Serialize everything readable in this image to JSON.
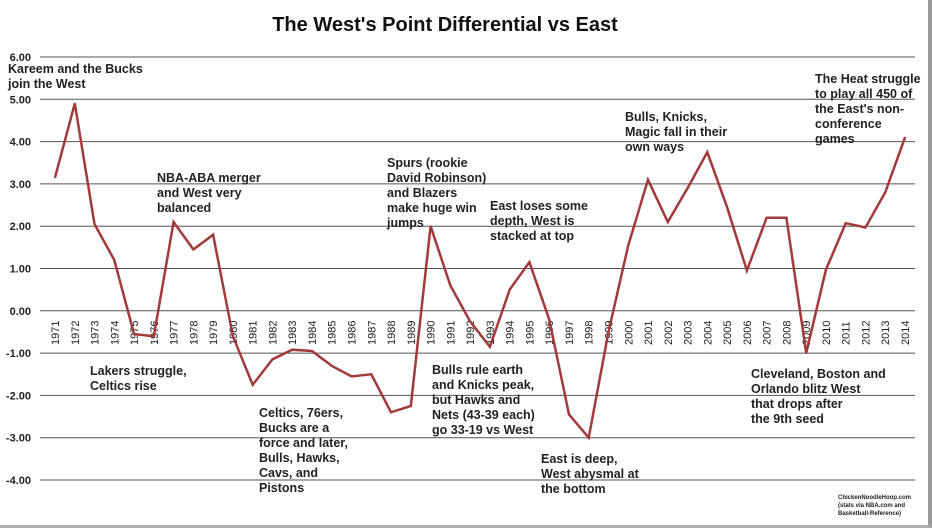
{
  "chart_data": {
    "type": "line",
    "title": "The West's Point Differential vs East",
    "xlabel": "",
    "ylabel": "",
    "ylim": [
      -4,
      6
    ],
    "y_ticks": [
      "6.00",
      "5.00",
      "4.00",
      "3.00",
      "2.00",
      "1.00",
      "0.00",
      "-1.00",
      "-2.00",
      "-3.00",
      "-4.00"
    ],
    "grid": true,
    "line_color": "#a23a3a",
    "x": [
      "1971",
      "1972",
      "1973",
      "1974",
      "1975",
      "1976",
      "1977",
      "1978",
      "1979",
      "1980",
      "1981",
      "1982",
      "1983",
      "1984",
      "1985",
      "1986",
      "1987",
      "1988",
      "1989",
      "1990",
      "1991",
      "1992",
      "1993",
      "1994",
      "1995",
      "1996",
      "1997",
      "1998",
      "1999",
      "2000",
      "2001",
      "2002",
      "2003",
      "2004",
      "2005",
      "2006",
      "2007",
      "2008",
      "2009",
      "2010",
      "2011",
      "2012",
      "2013",
      "2014"
    ],
    "series": [
      {
        "name": "West point differential",
        "values": [
          3.15,
          4.9,
          2.05,
          1.2,
          -0.55,
          -0.6,
          2.1,
          1.45,
          1.8,
          -0.6,
          -1.75,
          -1.15,
          -0.92,
          -0.95,
          -1.3,
          -1.55,
          -1.5,
          -2.4,
          -2.25,
          2.0,
          0.6,
          -0.25,
          -0.85,
          0.5,
          1.15,
          -0.2,
          -2.45,
          -3.0,
          -0.5,
          1.55,
          3.1,
          2.1,
          2.9,
          3.75,
          2.45,
          0.95,
          2.2,
          2.2,
          -1.0,
          0.97,
          2.07,
          1.97,
          2.8,
          4.1
        ]
      }
    ],
    "annotations": [
      "Kareem and the Bucks\njoin the West",
      "Lakers struggle,\nCeltics rise",
      "NBA-ABA merger\nand West very\nbalanced",
      "Celtics, 76ers,\nBucks are a\nforce and later,\nBulls, Hawks,\nCavs, and\nPistons",
      "Spurs (rookie\nDavid Robinson)\nand Blazers\nmake huge win\njumps",
      "Bulls rule earth\nand Knicks peak,\nbut Hawks and\nNets (43-39 each)\ngo 33-19 vs West",
      "East loses some\ndepth, West is\nstacked at top",
      "East is deep,\nWest abysmal at\nthe bottom",
      "Bulls, Knicks,\nMagic fall in their\nown ways",
      "Cleveland, Boston and\nOrlando blitz West\nthat drops after\nthe 9th seed",
      "The Heat struggle\nto play all 450 of\nthe East's non-\nconference\ngames"
    ],
    "credit": [
      "ChickenNoodleHoop.com",
      "(stats via NBA.com and",
      "Basketball-Reference)"
    ]
  }
}
